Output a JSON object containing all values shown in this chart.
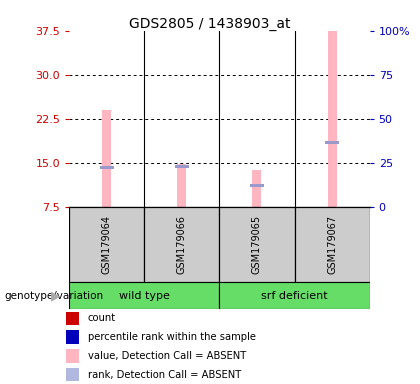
{
  "title": "GDS2805 / 1438903_at",
  "samples": [
    "GSM179064",
    "GSM179066",
    "GSM179065",
    "GSM179067"
  ],
  "ylim_left": [
    7.5,
    37.5
  ],
  "ylim_right": [
    0,
    100
  ],
  "yticks_left": [
    7.5,
    15.0,
    22.5,
    30.0,
    37.5
  ],
  "yticks_right": [
    0,
    25,
    50,
    75,
    100
  ],
  "ytick_right_labels": [
    "0",
    "25",
    "50",
    "75",
    "100%"
  ],
  "pink_bars": [
    24.0,
    14.8,
    13.8,
    37.5
  ],
  "blue_marks": [
    14.2,
    14.5,
    11.2,
    18.5
  ],
  "bg_color": "#ffffff",
  "left_tick_color": "#cc0000",
  "right_tick_color": "#0000bb",
  "sample_box_color": "#cccccc",
  "green_color": "#66DD66",
  "legend_colors": [
    "#cc0000",
    "#0000bb",
    "#ffb6c1",
    "#b0b8e0"
  ],
  "legend_labels": [
    "count",
    "percentile rank within the sample",
    "value, Detection Call = ABSENT",
    "rank, Detection Call = ABSENT"
  ]
}
